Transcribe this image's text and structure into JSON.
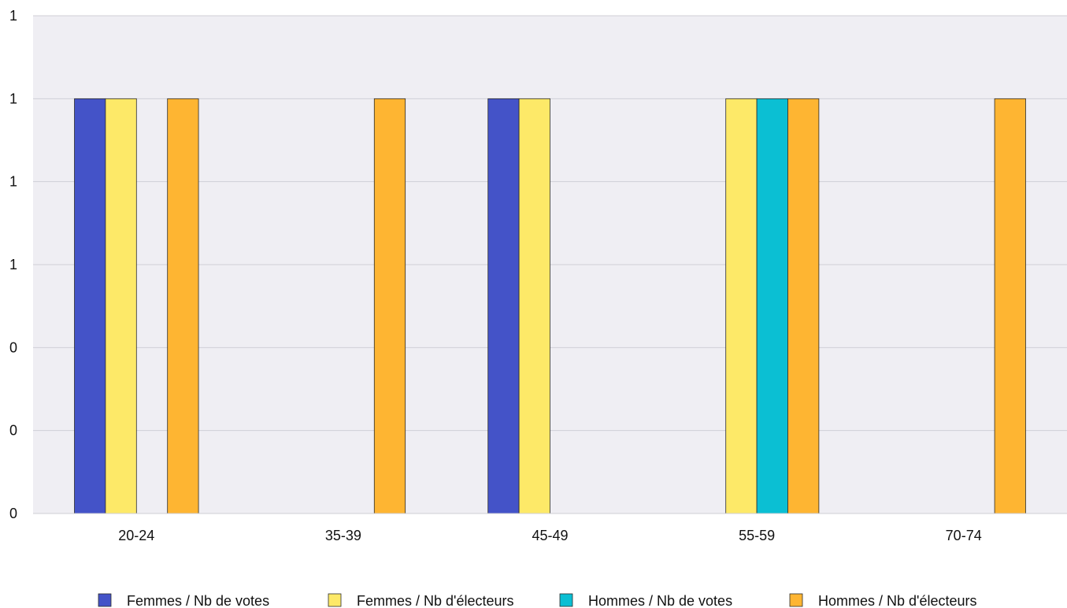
{
  "chart_data": {
    "type": "bar",
    "categories": [
      "20-24",
      "35-39",
      "45-49",
      "55-59",
      "70-74"
    ],
    "series": [
      {
        "name": "Femmes / Nb de votes",
        "color": "#4453c8",
        "values": [
          1,
          0,
          1,
          0,
          0
        ]
      },
      {
        "name": "Femmes / Nb d'électeurs",
        "color": "#fde968",
        "values": [
          1,
          0,
          1,
          1,
          0
        ]
      },
      {
        "name": "Hommes / Nb de votes",
        "color": "#0bbfd3",
        "values": [
          0,
          0,
          0,
          1,
          0
        ]
      },
      {
        "name": "Hommes / Nb d'électeurs",
        "color": "#feb532",
        "values": [
          1,
          1,
          0,
          1,
          1
        ]
      }
    ],
    "y_tick_labels": [
      "0",
      "0",
      "0",
      "1",
      "1",
      "1",
      "1"
    ],
    "ylim": [
      0,
      1.2
    ],
    "grid": true,
    "legend_position": "bottom",
    "plot_background": "#efeef3",
    "gridline_color": "#cfcfd6"
  }
}
